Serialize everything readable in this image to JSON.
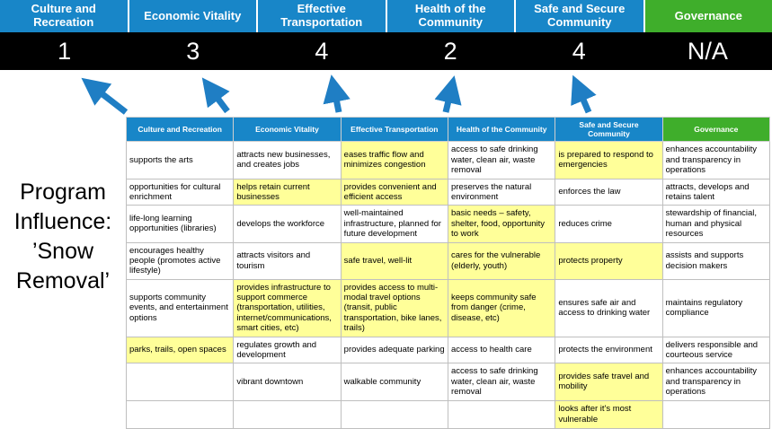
{
  "title": {
    "text": "Program Influence: ’Snow Removal’"
  },
  "colors": {
    "pillar_blue": "#1886C8",
    "pillar_green": "#3FAE2B",
    "score_band": "#000000",
    "highlight": "#FFFF99",
    "arrow": "#1F7EC4"
  },
  "pillars": [
    {
      "label": "Culture and Recreation",
      "score": "1",
      "theme": "blue"
    },
    {
      "label": "Economic Vitality",
      "score": "3",
      "theme": "blue"
    },
    {
      "label": "Effective Transportation",
      "score": "4",
      "theme": "blue"
    },
    {
      "label": "Health of the Community",
      "score": "2",
      "theme": "blue"
    },
    {
      "label": "Safe and Secure Community",
      "score": "4",
      "theme": "blue"
    },
    {
      "label": "Governance",
      "score": "N/A",
      "theme": "green"
    }
  ],
  "matrix": {
    "headers": [
      {
        "label": "Culture and Recreation",
        "theme": "blue"
      },
      {
        "label": "Economic Vitality",
        "theme": "blue"
      },
      {
        "label": "Effective Transportation",
        "theme": "blue"
      },
      {
        "label": "Health of the Community",
        "theme": "blue"
      },
      {
        "label": "Safe and Secure Community",
        "theme": "blue"
      },
      {
        "label": "Governance",
        "theme": "green"
      }
    ],
    "rows": [
      [
        {
          "text": "supports the arts",
          "highlight": false
        },
        {
          "text": "attracts new businesses, and creates jobs",
          "highlight": false
        },
        {
          "text": "eases traffic flow and minimizes congestion",
          "highlight": true
        },
        {
          "text": "access to safe drinking water, clean air, waste removal",
          "highlight": false
        },
        {
          "text": "is prepared to respond to emergencies",
          "highlight": true
        },
        {
          "text": "enhances accountability and transparency in operations",
          "highlight": false
        }
      ],
      [
        {
          "text": "opportunities for cultural enrichment",
          "highlight": false
        },
        {
          "text": "helps retain current businesses",
          "highlight": true
        },
        {
          "text": "provides convenient and efficient access",
          "highlight": true
        },
        {
          "text": "preserves the natural environment",
          "highlight": false
        },
        {
          "text": "enforces the law",
          "highlight": false
        },
        {
          "text": "attracts, develops and retains talent",
          "highlight": false
        }
      ],
      [
        {
          "text": "life-long learning opportunities (libraries)",
          "highlight": false
        },
        {
          "text": "develops the workforce",
          "highlight": false
        },
        {
          "text": "well-maintained infrastructure, planned for future development",
          "highlight": false
        },
        {
          "text": "basic needs – safety, shelter, food, opportunity to work",
          "highlight": true
        },
        {
          "text": "reduces crime",
          "highlight": false
        },
        {
          "text": "stewardship of financial, human and physical resources",
          "highlight": false
        }
      ],
      [
        {
          "text": "encourages healthy people (promotes active lifestyle)",
          "highlight": false
        },
        {
          "text": "attracts visitors and tourism",
          "highlight": false
        },
        {
          "text": "safe travel, well-lit",
          "highlight": true
        },
        {
          "text": "cares for the vulnerable (elderly, youth)",
          "highlight": true
        },
        {
          "text": "protects property",
          "highlight": true
        },
        {
          "text": "assists and supports decision makers",
          "highlight": false
        }
      ],
      [
        {
          "text": "supports community events, and entertainment options",
          "highlight": false
        },
        {
          "text": "provides infrastructure to support commerce (transportation, utilities, internet/communications, smart cities, etc)",
          "highlight": true
        },
        {
          "text": "provides access to multi-modal travel options (transit, public transportation, bike lanes, trails)",
          "highlight": true
        },
        {
          "text": "keeps community safe from danger (crime, disease, etc)",
          "highlight": true
        },
        {
          "text": "ensures safe air and access to drinking water",
          "highlight": false
        },
        {
          "text": "maintains regulatory compliance",
          "highlight": false
        }
      ],
      [
        {
          "text": "parks, trails, open spaces",
          "highlight": true
        },
        {
          "text": "regulates growth and development",
          "highlight": false
        },
        {
          "text": "provides adequate parking",
          "highlight": false
        },
        {
          "text": "access to health care",
          "highlight": false
        },
        {
          "text": "protects the environment",
          "highlight": false
        },
        {
          "text": "delivers responsible and courteous service",
          "highlight": false
        }
      ],
      [
        {
          "text": "",
          "highlight": false
        },
        {
          "text": "vibrant downtown",
          "highlight": false
        },
        {
          "text": "walkable community",
          "highlight": false
        },
        {
          "text": "access to safe drinking water, clean air, waste removal",
          "highlight": false
        },
        {
          "text": "provides safe travel and mobility",
          "highlight": true
        },
        {
          "text": "enhances accountability and transparency in operations",
          "highlight": false
        }
      ],
      [
        {
          "text": "",
          "highlight": false
        },
        {
          "text": "",
          "highlight": false
        },
        {
          "text": "",
          "highlight": false
        },
        {
          "text": "",
          "highlight": false
        },
        {
          "text": "looks after it's most vulnerable",
          "highlight": true
        },
        {
          "text": "",
          "highlight": false
        }
      ]
    ]
  }
}
